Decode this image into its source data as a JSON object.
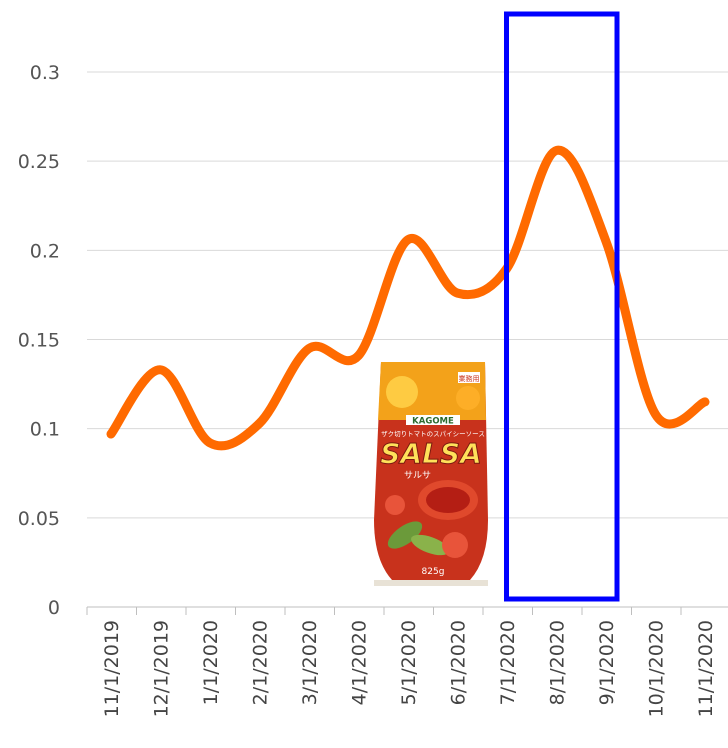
{
  "chart_data": {
    "type": "line",
    "x": [
      "11/1/2019",
      "12/1/2019",
      "1/1/2020",
      "2/1/2020",
      "3/1/2020",
      "4/1/2020",
      "5/1/2020",
      "6/1/2020",
      "7/1/2020",
      "8/1/2020",
      "9/1/2020",
      "10/1/2020",
      "11/1/2020"
    ],
    "series": [
      {
        "values": [
          0.097,
          0.133,
          0.092,
          0.103,
          0.145,
          0.141,
          0.206,
          0.176,
          0.19,
          0.256,
          0.205,
          0.108,
          0.115
        ]
      }
    ],
    "y_ticks": [
      "0",
      "0.05",
      "0.1",
      "0.15",
      "0.2",
      "0.25",
      "0.3"
    ],
    "ylim": [
      0,
      0.3
    ],
    "grid": true,
    "line_color": "#FF6A00",
    "highlight": {
      "from": "7/1/2020",
      "to": "9/1/2020",
      "color": "#0000FF"
    },
    "inset_image": {
      "brand": "KAGOME",
      "subtitle": "ザク切りトマトのスパイシーソース",
      "badge": "業務用",
      "product": "SALSA",
      "product_jp": "サルサ",
      "weight": "825g"
    }
  }
}
